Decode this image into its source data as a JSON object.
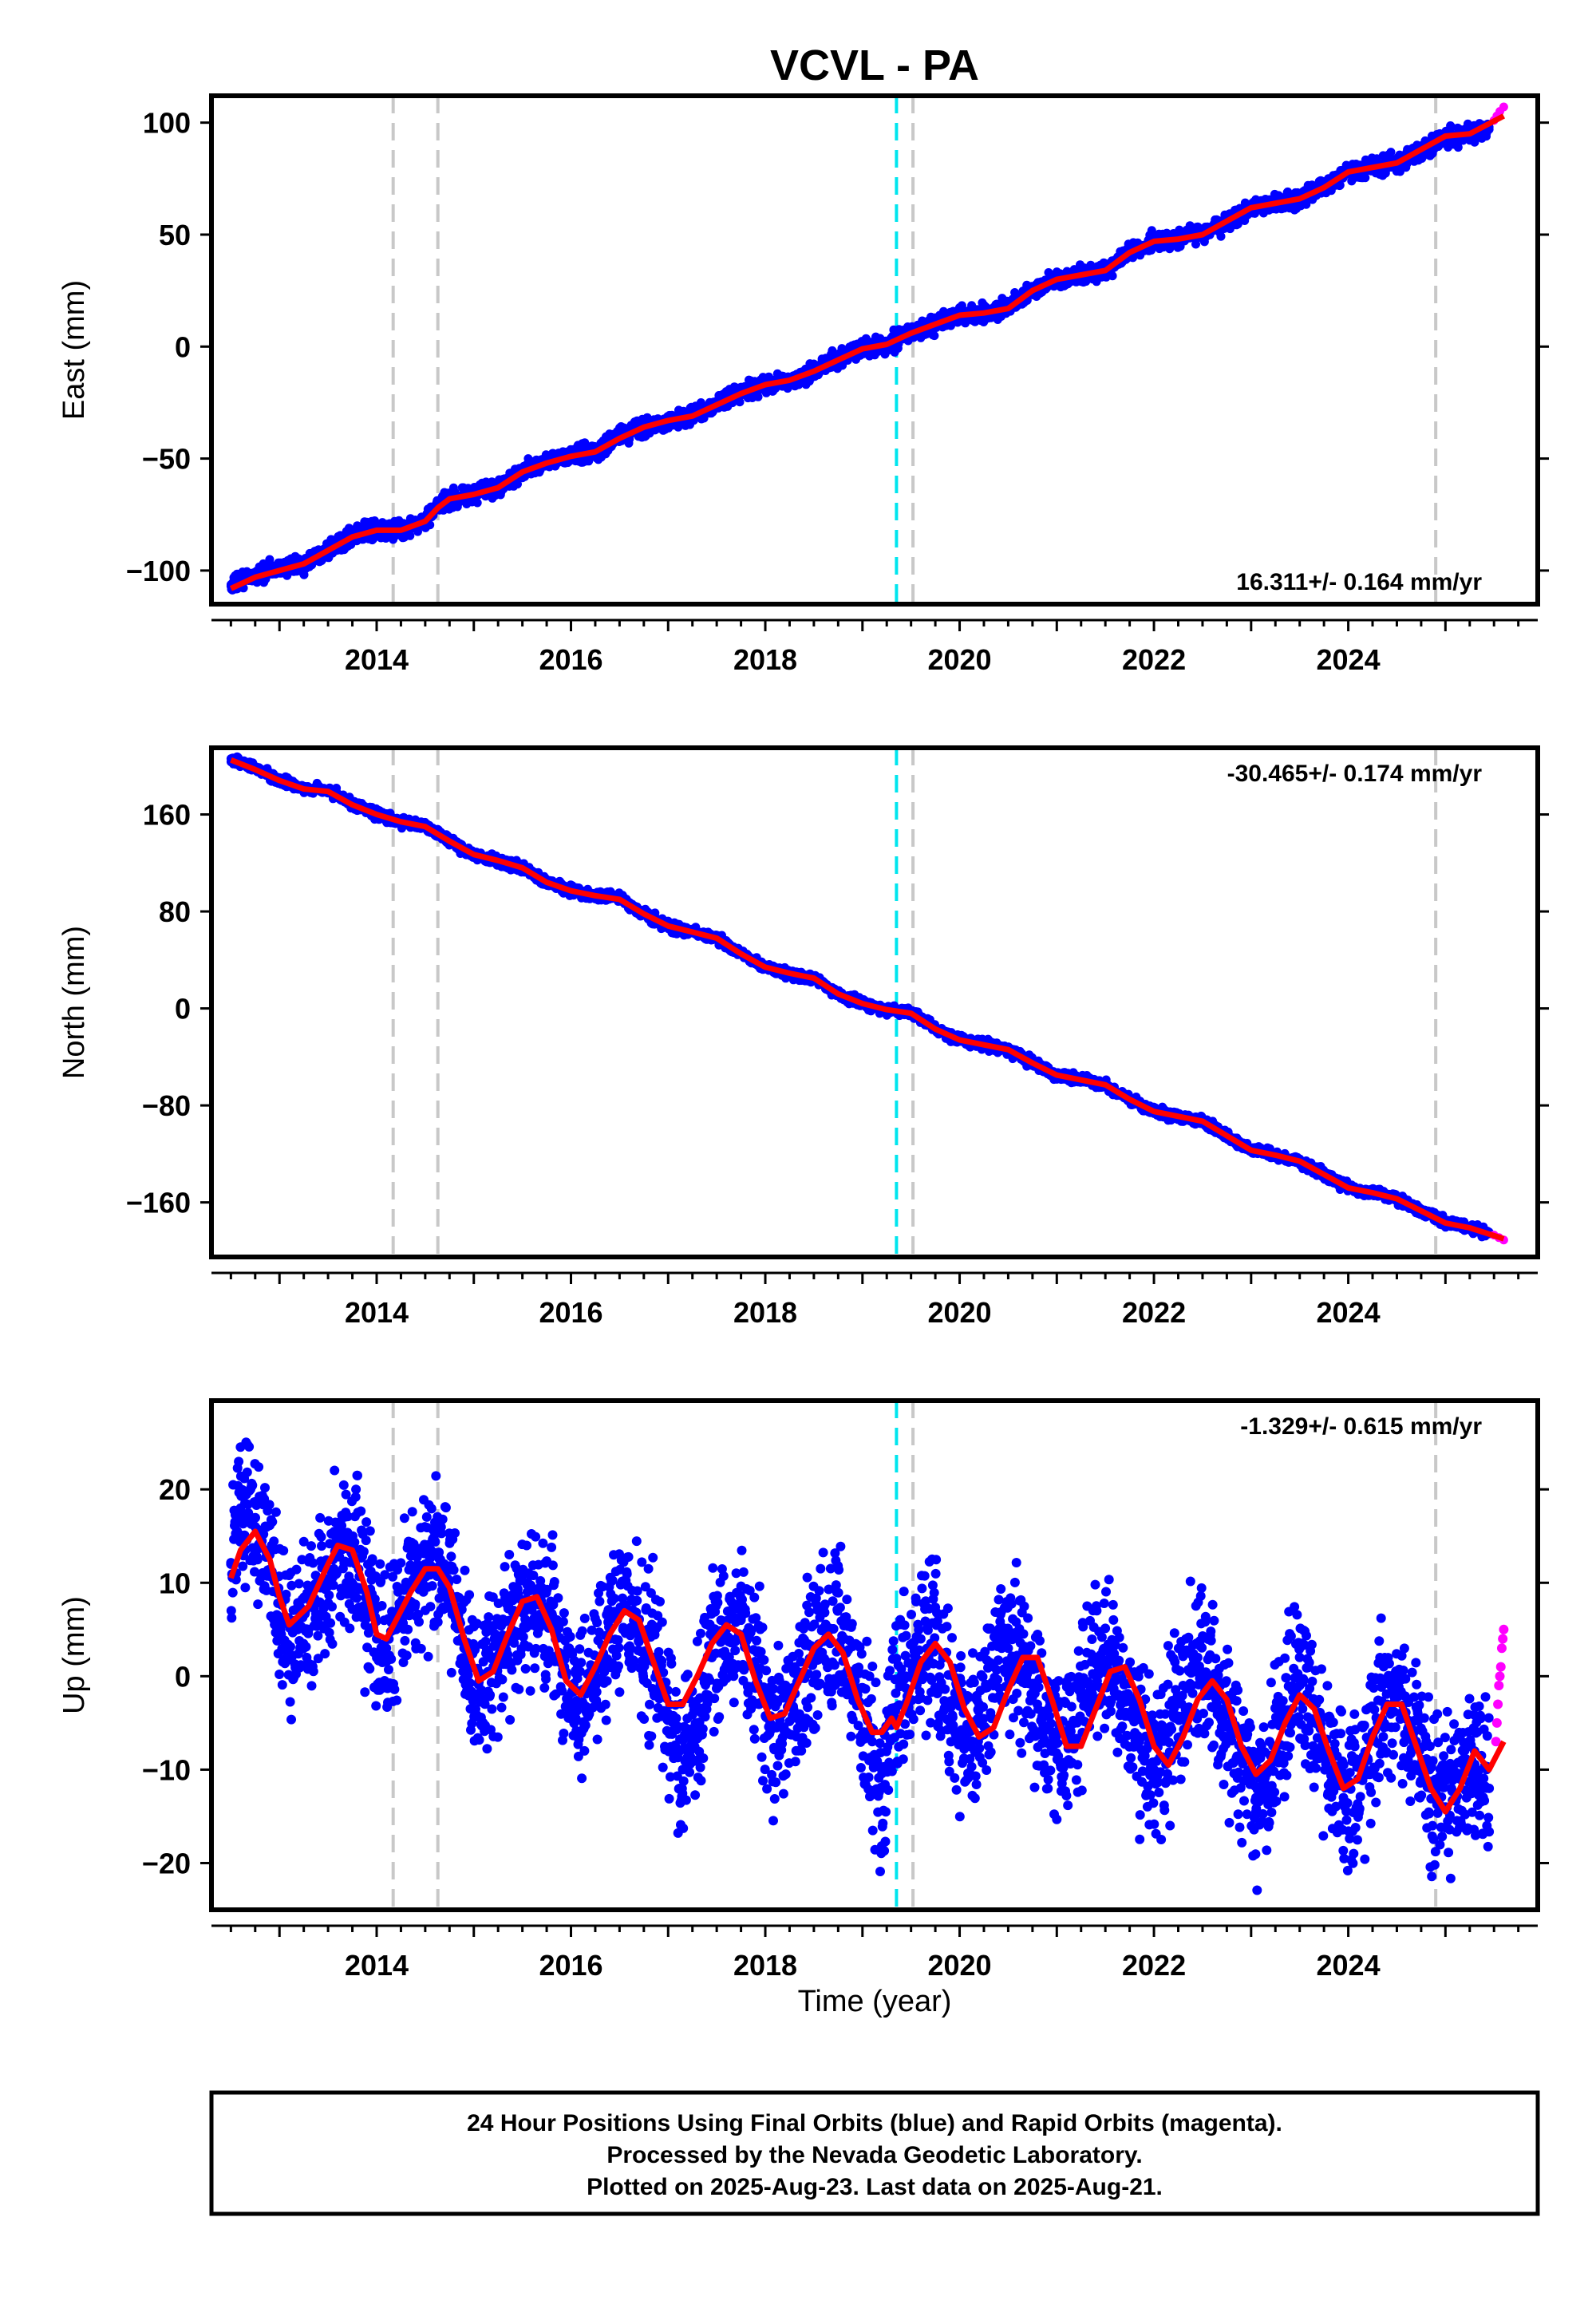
{
  "title": "VCVL - PA",
  "x_axis_label": "Time (year)",
  "footer": {
    "line1": "24 Hour Positions Using Final Orbits (blue) and Rapid Orbits (magenta).",
    "line2": "Processed by the Nevada Geodetic Laboratory.",
    "line3": "Plotted on 2025-Aug-23. Last data on 2025-Aug-21."
  },
  "colors": {
    "final_orbits": "#0000ff",
    "rapid_orbits": "#ff00ff",
    "model_fit": "#ff0000",
    "equipment_change": "#c8c8c8",
    "event_marker": "#00e5ee"
  },
  "chart_data": [
    {
      "type": "scatter",
      "component": "east",
      "ylabel": "East (mm)",
      "rate_label": "16.311+/- 0.164 mm/yr",
      "rate_position": "bottom-right",
      "xlim": [
        2012.3,
        2025.95
      ],
      "ylim": [
        -115,
        112
      ],
      "x_ticks": [
        2014,
        2016,
        2018,
        2020,
        2022,
        2024
      ],
      "y_ticks": [
        -100,
        -50,
        0,
        50,
        100
      ],
      "y_tick_labels": [
        "−100",
        "−50",
        "0",
        "50",
        "100"
      ],
      "vertical_lines": {
        "gray_dashed": [
          2014.17,
          2014.63,
          2024.9
        ],
        "cyan_dashed": [
          2019.35
        ],
        "gray_dashed_extra": [
          2019.52
        ]
      },
      "series": [
        {
          "role": "final_orbits",
          "style": "points",
          "x": [
            2012.5,
            2012.75,
            2013.0,
            2013.25,
            2013.5,
            2013.75,
            2014.0,
            2014.25,
            2014.5,
            2014.63,
            2014.75,
            2015.0,
            2015.25,
            2015.5,
            2015.75,
            2016.0,
            2016.25,
            2016.5,
            2016.75,
            2017.0,
            2017.25,
            2017.5,
            2017.75,
            2018.0,
            2018.25,
            2018.5,
            2018.75,
            2019.0,
            2019.25,
            2019.5,
            2019.75,
            2020.0,
            2020.25,
            2020.5,
            2020.75,
            2021.0,
            2021.25,
            2021.5,
            2021.75,
            2022.0,
            2022.25,
            2022.5,
            2022.75,
            2023.0,
            2023.25,
            2023.5,
            2023.75,
            2024.0,
            2024.25,
            2024.5,
            2024.75,
            2025.0,
            2025.25,
            2025.45
          ],
          "y": [
            -107,
            -102,
            -99,
            -97,
            -90,
            -84,
            -82,
            -82,
            -78,
            -72,
            -68,
            -66,
            -63,
            -56,
            -51,
            -49,
            -47,
            -40,
            -36,
            -33,
            -31,
            -26,
            -20,
            -17,
            -15,
            -11,
            -5,
            -1,
            1,
            6,
            10,
            14,
            15,
            17,
            25,
            30,
            32,
            34,
            42,
            47,
            48,
            50,
            56,
            62,
            64,
            66,
            71,
            78,
            80,
            82,
            88,
            94,
            95,
            97
          ]
        },
        {
          "role": "rapid_orbits",
          "style": "points",
          "x": [
            2025.5,
            2025.53,
            2025.56,
            2025.6
          ],
          "y": [
            101,
            103,
            105,
            107
          ]
        },
        {
          "role": "model_fit",
          "style": "line",
          "x": [
            2012.5,
            2012.75,
            2013.0,
            2013.25,
            2013.5,
            2013.75,
            2014.0,
            2014.25,
            2014.5,
            2014.63,
            2014.75,
            2015.0,
            2015.25,
            2015.5,
            2015.75,
            2016.0,
            2016.25,
            2016.5,
            2016.75,
            2017.0,
            2017.25,
            2017.5,
            2017.75,
            2018.0,
            2018.25,
            2018.5,
            2018.75,
            2019.0,
            2019.25,
            2019.5,
            2019.75,
            2020.0,
            2020.25,
            2020.5,
            2020.75,
            2021.0,
            2021.25,
            2021.5,
            2021.75,
            2022.0,
            2022.25,
            2022.5,
            2022.75,
            2023.0,
            2023.25,
            2023.5,
            2023.75,
            2024.0,
            2024.25,
            2024.5,
            2024.75,
            2025.0,
            2025.25,
            2025.6
          ],
          "y": [
            -108,
            -103,
            -100,
            -97,
            -91,
            -85,
            -82,
            -82,
            -78,
            -72,
            -68,
            -66,
            -63,
            -56,
            -52,
            -49,
            -47,
            -41,
            -36,
            -33,
            -31,
            -26,
            -21,
            -17,
            -15,
            -11,
            -6,
            -1,
            1,
            6,
            10,
            14,
            15,
            17,
            25,
            30,
            32,
            34,
            42,
            47,
            48,
            50,
            56,
            62,
            64,
            66,
            71,
            78,
            80,
            82,
            88,
            94,
            95,
            103
          ]
        }
      ]
    },
    {
      "type": "scatter",
      "component": "north",
      "ylabel": "North (mm)",
      "rate_label": "-30.465+/- 0.174 mm/yr",
      "rate_position": "top-right",
      "xlim": [
        2012.3,
        2025.95
      ],
      "ylim": [
        -205,
        215
      ],
      "x_ticks": [
        2014,
        2016,
        2018,
        2020,
        2022,
        2024
      ],
      "y_ticks": [
        -160,
        -80,
        0,
        80,
        160
      ],
      "y_tick_labels": [
        "−160",
        "−80",
        "0",
        "80",
        "160"
      ],
      "vertical_lines": {
        "gray_dashed": [
          2014.17,
          2014.63,
          2024.9
        ],
        "cyan_dashed": [
          2019.35
        ],
        "gray_dashed_extra": [
          2019.52
        ]
      },
      "series": [
        {
          "role": "final_orbits",
          "style": "points",
          "x": [
            2012.5,
            2012.75,
            2013.0,
            2013.25,
            2013.5,
            2013.75,
            2014.0,
            2014.25,
            2014.5,
            2014.75,
            2015.0,
            2015.25,
            2015.5,
            2015.75,
            2016.0,
            2016.25,
            2016.5,
            2016.75,
            2017.0,
            2017.25,
            2017.5,
            2017.75,
            2018.0,
            2018.25,
            2018.5,
            2018.75,
            2019.0,
            2019.25,
            2019.5,
            2019.75,
            2020.0,
            2020.25,
            2020.5,
            2020.75,
            2021.0,
            2021.25,
            2021.5,
            2021.75,
            2022.0,
            2022.25,
            2022.5,
            2022.75,
            2023.0,
            2023.25,
            2023.5,
            2023.75,
            2024.0,
            2024.25,
            2024.5,
            2024.75,
            2025.0,
            2025.25,
            2025.45
          ],
          "y": [
            206,
            198,
            188,
            181,
            180,
            168,
            160,
            154,
            150,
            138,
            127,
            122,
            116,
            104,
            97,
            93,
            91,
            78,
            68,
            63,
            58,
            45,
            34,
            28,
            25,
            12,
            4,
            -1,
            -3,
            -17,
            -26,
            -30,
            -34,
            -45,
            -55,
            -59,
            -63,
            -75,
            -85,
            -89,
            -93,
            -105,
            -117,
            -121,
            -126,
            -137,
            -148,
            -152,
            -157,
            -167,
            -177,
            -181,
            -186
          ]
        },
        {
          "role": "rapid_orbits",
          "style": "points",
          "x": [
            2025.5,
            2025.55,
            2025.6
          ],
          "y": [
            -187,
            -189,
            -191
          ]
        },
        {
          "role": "model_fit",
          "style": "line",
          "x": [
            2012.5,
            2012.75,
            2013.0,
            2013.25,
            2013.5,
            2013.75,
            2014.0,
            2014.25,
            2014.5,
            2014.75,
            2015.0,
            2015.25,
            2015.5,
            2015.75,
            2016.0,
            2016.25,
            2016.5,
            2016.75,
            2017.0,
            2017.25,
            2017.5,
            2017.75,
            2018.0,
            2018.25,
            2018.5,
            2018.75,
            2019.0,
            2019.25,
            2019.5,
            2019.75,
            2020.0,
            2020.25,
            2020.5,
            2020.75,
            2021.0,
            2021.25,
            2021.5,
            2021.75,
            2022.0,
            2022.25,
            2022.5,
            2022.75,
            2023.0,
            2023.25,
            2023.5,
            2023.75,
            2024.0,
            2024.25,
            2024.5,
            2024.75,
            2025.0,
            2025.25,
            2025.6
          ],
          "y": [
            205,
            197,
            188,
            181,
            179,
            168,
            160,
            154,
            150,
            138,
            127,
            122,
            116,
            104,
            97,
            93,
            90,
            78,
            68,
            63,
            58,
            45,
            34,
            29,
            25,
            12,
            4,
            -1,
            -4,
            -17,
            -26,
            -30,
            -34,
            -45,
            -55,
            -59,
            -63,
            -75,
            -85,
            -89,
            -93,
            -105,
            -117,
            -121,
            -126,
            -137,
            -148,
            -152,
            -157,
            -167,
            -177,
            -181,
            -190
          ]
        }
      ]
    },
    {
      "type": "scatter",
      "component": "up",
      "ylabel": "Up (mm)",
      "rate_label": "-1.329+/- 0.615 mm/yr",
      "rate_position": "top-right",
      "xlim": [
        2012.3,
        2025.95
      ],
      "ylim": [
        -25,
        29.5
      ],
      "x_ticks": [
        2014,
        2016,
        2018,
        2020,
        2022,
        2024
      ],
      "y_ticks": [
        -20,
        -10,
        0,
        10,
        20
      ],
      "y_tick_labels": [
        "−20",
        "−10",
        "0",
        "10",
        "20"
      ],
      "vertical_lines": {
        "gray_dashed": [
          2014.17,
          2014.63,
          2024.9
        ],
        "cyan_dashed": [
          2019.35
        ],
        "gray_dashed_extra": [
          2019.52
        ]
      },
      "series": [
        {
          "role": "final_orbits",
          "style": "points",
          "x": [
            2012.5,
            2012.6,
            2012.75,
            2012.9,
            2013.0,
            2013.1,
            2013.3,
            2013.5,
            2013.6,
            2013.75,
            2013.9,
            2014.0,
            2014.1,
            2014.2,
            2014.35,
            2014.5,
            2014.65,
            2014.75,
            2014.9,
            2015.05,
            2015.2,
            2015.35,
            2015.5,
            2015.65,
            2015.8,
            2015.95,
            2016.1,
            2016.25,
            2016.4,
            2016.55,
            2016.7,
            2016.85,
            2017.0,
            2017.15,
            2017.3,
            2017.45,
            2017.6,
            2017.75,
            2017.9,
            2018.05,
            2018.2,
            2018.35,
            2018.5,
            2018.65,
            2018.8,
            2018.95,
            2019.1,
            2019.2,
            2019.3,
            2019.45,
            2019.6,
            2019.75,
            2019.9,
            2020.05,
            2020.2,
            2020.35,
            2020.5,
            2020.65,
            2020.8,
            2020.95,
            2021.1,
            2021.25,
            2021.4,
            2021.55,
            2021.7,
            2021.85,
            2022.0,
            2022.15,
            2022.3,
            2022.45,
            2022.6,
            2022.75,
            2022.9,
            2023.05,
            2023.2,
            2023.35,
            2023.5,
            2023.65,
            2023.8,
            2023.95,
            2024.1,
            2024.25,
            2024.4,
            2024.55,
            2024.7,
            2024.85,
            2025.0,
            2025.15,
            2025.3,
            2025.45
          ],
          "y": [
            12,
            18,
            16,
            13,
            6,
            3,
            5,
            10,
            14,
            13,
            9,
            4,
            3,
            5,
            8,
            12,
            11,
            9,
            3,
            -2,
            1,
            4,
            7,
            9,
            6,
            0,
            -3,
            1,
            4,
            7,
            6,
            2,
            -4,
            -10,
            -5,
            2,
            5,
            6,
            1,
            -5,
            -6,
            0,
            3,
            5,
            4,
            -2,
            -7,
            -12,
            -4,
            0,
            4,
            3,
            -3,
            -7,
            -5,
            1,
            3,
            2,
            -3,
            -8,
            -7,
            -2,
            2,
            2,
            -2,
            -7,
            -10,
            -6,
            -1,
            2,
            0,
            -4,
            -9,
            -13,
            -10,
            -4,
            -1,
            -3,
            -8,
            -13,
            -11,
            -6,
            -3,
            -4,
            -7,
            -12,
            -14,
            -11,
            -8,
            -12
          ]
        },
        {
          "role": "rapid_orbits",
          "style": "points",
          "x": [
            2025.52,
            2025.53,
            2025.54,
            2025.55,
            2025.56,
            2025.57,
            2025.58,
            2025.59,
            2025.6
          ],
          "y": [
            -7,
            -5,
            -3,
            -1,
            0,
            1,
            3,
            4,
            5
          ]
        },
        {
          "role": "model_fit",
          "style": "line",
          "x": [
            2012.5,
            2012.6,
            2012.75,
            2012.9,
            2013.0,
            2013.1,
            2013.3,
            2013.5,
            2013.6,
            2013.75,
            2013.9,
            2014.0,
            2014.1,
            2014.2,
            2014.35,
            2014.5,
            2014.63,
            2014.75,
            2014.9,
            2015.05,
            2015.2,
            2015.35,
            2015.5,
            2015.65,
            2015.8,
            2015.95,
            2016.1,
            2016.25,
            2016.4,
            2016.55,
            2016.7,
            2016.85,
            2017.0,
            2017.15,
            2017.3,
            2017.45,
            2017.6,
            2017.75,
            2017.9,
            2018.05,
            2018.2,
            2018.35,
            2018.5,
            2018.65,
            2018.8,
            2018.95,
            2019.1,
            2019.2,
            2019.3,
            2019.35,
            2019.45,
            2019.6,
            2019.75,
            2019.9,
            2020.05,
            2020.2,
            2020.35,
            2020.5,
            2020.65,
            2020.8,
            2020.95,
            2021.1,
            2021.25,
            2021.4,
            2021.55,
            2021.7,
            2021.85,
            2022.0,
            2022.15,
            2022.3,
            2022.45,
            2022.6,
            2022.75,
            2022.9,
            2023.05,
            2023.2,
            2023.35,
            2023.5,
            2023.65,
            2023.8,
            2023.95,
            2024.1,
            2024.25,
            2024.4,
            2024.55,
            2024.7,
            2024.85,
            2025.0,
            2025.15,
            2025.3,
            2025.45,
            2025.6
          ],
          "y": [
            10.5,
            13.5,
            15.5,
            12.5,
            8.5,
            5.5,
            7.5,
            12,
            14,
            13.5,
            9,
            4.5,
            4,
            6,
            9,
            11.5,
            11.5,
            9.5,
            4,
            -0.5,
            0.5,
            4.5,
            8,
            8.5,
            5,
            -0.5,
            -2,
            1,
            4.5,
            7,
            6,
            1.5,
            -3,
            -3,
            0,
            3.5,
            5.5,
            4.5,
            -0.5,
            -4.5,
            -4,
            -0.5,
            3,
            4.5,
            2.5,
            -2.5,
            -6,
            -6,
            -4.5,
            -5.5,
            -3,
            1.5,
            3.5,
            1.5,
            -3.5,
            -6.5,
            -5.5,
            -1.5,
            2,
            2,
            -2.5,
            -7.5,
            -7.5,
            -3.5,
            0.5,
            1,
            -2.5,
            -7.5,
            -9.5,
            -6.5,
            -2.5,
            -0.5,
            -2.5,
            -7.5,
            -10.5,
            -9,
            -5,
            -2,
            -3.5,
            -8,
            -12,
            -11,
            -6.5,
            -3,
            -3,
            -7.5,
            -12,
            -14.5,
            -12,
            -8,
            -10,
            -7
          ]
        }
      ]
    }
  ]
}
